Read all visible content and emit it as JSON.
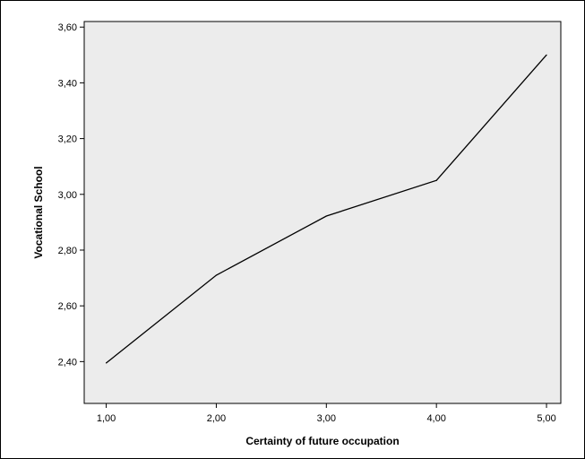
{
  "chart_data": {
    "type": "line",
    "title": "",
    "xlabel": "Certainty of future occupation",
    "ylabel": "Vocational School",
    "x": [
      1,
      2,
      3,
      4,
      5
    ],
    "x_tick_labels": [
      "1,00",
      "2,00",
      "3,00",
      "4,00",
      "5,00"
    ],
    "xlim": [
      0.8,
      5.13
    ],
    "y_ticks": [
      2.4,
      2.6,
      2.8,
      3.0,
      3.2,
      3.4,
      3.6
    ],
    "y_tick_labels": [
      "2,40",
      "2,60",
      "2,80",
      "3,00",
      "3,20",
      "3,40",
      "3,60"
    ],
    "ylim": [
      2.25,
      3.62
    ],
    "series": [
      {
        "values": [
          2.395,
          2.71,
          2.922,
          3.05,
          3.5
        ]
      }
    ],
    "grid": false,
    "legend": "none",
    "colors": {
      "plot_background": "#ececec",
      "line": "#000000",
      "axis": "#000000"
    }
  }
}
